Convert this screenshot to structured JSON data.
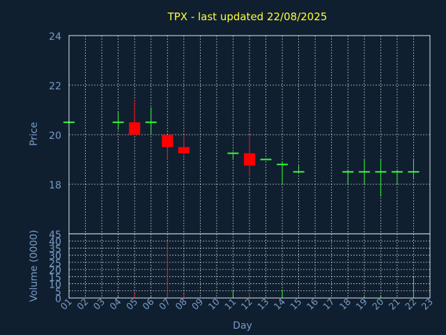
{
  "chart_data": {
    "type": "candlestick",
    "title": "TPX - last updated 22/08/2025",
    "xlabel": "Day",
    "ylabel_price": "Price",
    "ylabel_volume": "Volume (0000)",
    "price_ylim": [
      16,
      24
    ],
    "price_yticks": [
      18,
      20,
      22,
      24
    ],
    "volume_ylim": [
      0,
      45
    ],
    "volume_yticks": [
      0,
      5,
      10,
      15,
      20,
      25,
      30,
      35,
      40,
      45
    ],
    "x_ticks": [
      "01",
      "02",
      "03",
      "04",
      "05",
      "06",
      "07",
      "08",
      "09",
      "10",
      "11",
      "12",
      "13",
      "14",
      "15",
      "16",
      "17",
      "18",
      "19",
      "20",
      "21",
      "22",
      "23"
    ],
    "grid": true,
    "colors": {
      "up": "#33ff33",
      "down": "#ff0000",
      "title": "#ffff33",
      "axis_text": "#7a9cc6",
      "background": "#0f1f30"
    },
    "candles": [
      {
        "day": 1,
        "open": 20.5,
        "high": 20.5,
        "low": 20.5,
        "close": 20.5,
        "volume": 0.5
      },
      {
        "day": 4,
        "open": 20.5,
        "high": 20.9,
        "low": 20.2,
        "close": 20.5,
        "volume": 1
      },
      {
        "day": 5,
        "open": 20.5,
        "high": 21.4,
        "low": 20.0,
        "close": 20.0,
        "volume": 3
      },
      {
        "day": 6,
        "open": 20.5,
        "high": 21.1,
        "low": 20.0,
        "close": 20.5,
        "volume": 1
      },
      {
        "day": 7,
        "open": 20.0,
        "high": 20.0,
        "low": 19.0,
        "close": 19.5,
        "volume": 40
      },
      {
        "day": 8,
        "open": 19.5,
        "high": 20.0,
        "low": 19.2,
        "close": 19.25,
        "volume": 3
      },
      {
        "day": 11,
        "open": 19.25,
        "high": 19.3,
        "low": 19.0,
        "close": 19.25,
        "volume": 5
      },
      {
        "day": 12,
        "open": 19.25,
        "high": 20.0,
        "low": 18.3,
        "close": 18.75,
        "volume": 4
      },
      {
        "day": 13,
        "open": 19.0,
        "high": 19.0,
        "low": 19.0,
        "close": 19.0,
        "volume": 0.5
      },
      {
        "day": 14,
        "open": 18.8,
        "high": 18.9,
        "low": 18.0,
        "close": 18.8,
        "volume": 6
      },
      {
        "day": 15,
        "open": 18.5,
        "high": 18.75,
        "low": 18.5,
        "close": 18.5,
        "volume": 0.5
      },
      {
        "day": 18,
        "open": 18.5,
        "high": 18.6,
        "low": 18.0,
        "close": 18.5,
        "volume": 0.5
      },
      {
        "day": 19,
        "open": 18.5,
        "high": 19.0,
        "low": 18.0,
        "close": 18.5,
        "volume": 1
      },
      {
        "day": 20,
        "open": 18.5,
        "high": 19.0,
        "low": 17.5,
        "close": 18.5,
        "volume": 2
      },
      {
        "day": 21,
        "open": 18.5,
        "high": 18.6,
        "low": 18.0,
        "close": 18.5,
        "volume": 0.5
      },
      {
        "day": 22,
        "open": 18.5,
        "high": 19.0,
        "low": 18.2,
        "close": 18.5,
        "volume": 15
      }
    ]
  }
}
